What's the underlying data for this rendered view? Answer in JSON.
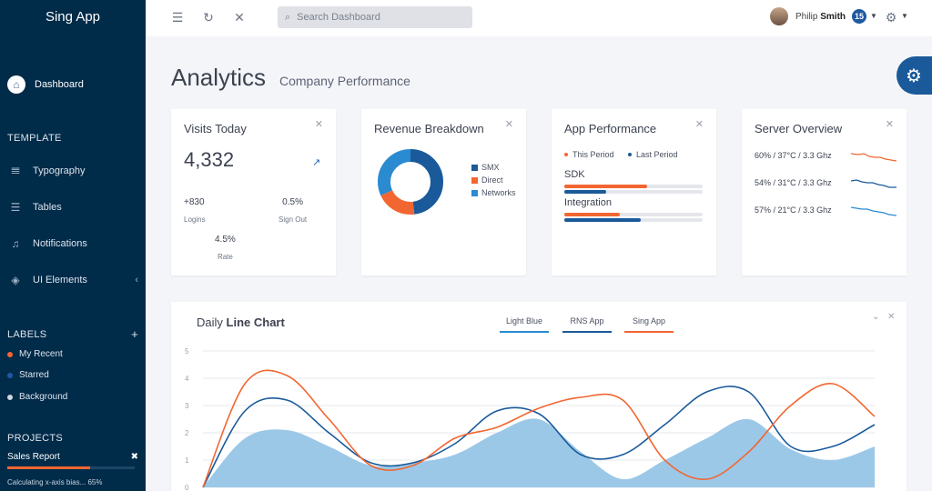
{
  "app": {
    "name": "Sing App"
  },
  "sidebar": {
    "dashboard": "Dashboard",
    "template_title": "TEMPLATE",
    "items": [
      {
        "label": "Typography",
        "icon": "typography-icon"
      },
      {
        "label": "Tables",
        "icon": "tables-icon"
      },
      {
        "label": "Notifications",
        "icon": "bell-icon"
      },
      {
        "label": "UI Elements",
        "icon": "layers-icon"
      }
    ],
    "labels_title": "LABELS",
    "labels": [
      {
        "label": "My Recent",
        "color": "#f26631"
      },
      {
        "label": "Starred",
        "color": "#1e5aa0"
      },
      {
        "label": "Background",
        "color": "#cfd6df"
      }
    ],
    "projects_title": "PROJECTS",
    "project": {
      "name": "Sales Report",
      "note": "Calculating x-axis bias... 65%",
      "progress": 0.65
    }
  },
  "header": {
    "search_placeholder": "Search Dashboard",
    "user_first": "Philip",
    "user_last": "Smith",
    "notifications": "15"
  },
  "page": {
    "title": "Analytics",
    "subtitle": "Company Performance"
  },
  "visits": {
    "title": "Visits Today",
    "value": "4,332",
    "stats": [
      {
        "value": "+830",
        "label": "Logins"
      },
      {
        "value": "0.5%",
        "label": "Sign Out"
      },
      {
        "value": "4.5%",
        "label": "Rate"
      }
    ]
  },
  "revenue": {
    "title": "Revenue Breakdown",
    "segments": [
      {
        "label": "SMX",
        "color": "#1a5a9a",
        "value": 0.48
      },
      {
        "label": "Direct",
        "color": "#f26631",
        "value": 0.2
      },
      {
        "label": "Networks",
        "color": "#2a8bd1",
        "value": 0.32
      }
    ]
  },
  "app_performance": {
    "title": "App Performance",
    "legend": [
      {
        "label": "This Period",
        "color": "#f26631"
      },
      {
        "label": "Last Period",
        "color": "#1a5a9a"
      }
    ],
    "metrics": [
      {
        "label": "SDK",
        "this_period": 0.6,
        "last_period": 0.3
      },
      {
        "label": "Integration",
        "this_period": 0.4,
        "last_period": 0.55
      }
    ]
  },
  "server": {
    "title": "Server Overview",
    "rows": [
      {
        "label": "60% / 37°C / 3.3 Ghz",
        "color": "#f26631"
      },
      {
        "label": "54% / 31°C / 3.3 Ghz",
        "color": "#1a5a9a"
      },
      {
        "label": "57% / 21°C / 3.3 Ghz",
        "color": "#2a8bd1"
      }
    ]
  },
  "line_chart": {
    "title_prefix": "Daily",
    "title_bold": "Line Chart",
    "legend": [
      {
        "label": "Light Blue",
        "color": "#2a8bd1"
      },
      {
        "label": "RNS App",
        "color": "#1a5a9a"
      },
      {
        "label": "Sing App",
        "color": "#f26631"
      }
    ]
  },
  "chart_data": {
    "type": "line",
    "title": "Daily Line Chart",
    "yticks": [
      0,
      1,
      2,
      3,
      4,
      5
    ],
    "ylim": [
      0,
      5
    ],
    "xlim": [
      0,
      16
    ],
    "series": [
      {
        "name": "Light Blue",
        "type": "area",
        "color": "#9cc8e8",
        "x": [
          0,
          1,
          2,
          3,
          4,
          5,
          6,
          7,
          8,
          9,
          10,
          11,
          12,
          13,
          14,
          15,
          16
        ],
        "y": [
          0,
          1.8,
          2.1,
          1.5,
          0.8,
          0.9,
          1.2,
          2.0,
          2.5,
          1.3,
          0.3,
          1.0,
          1.8,
          2.5,
          1.4,
          1.0,
          1.5
        ]
      },
      {
        "name": "RNS App",
        "color": "#1a5a9a",
        "x": [
          0,
          1,
          2,
          3,
          4,
          5,
          6,
          7,
          8,
          9,
          10,
          11,
          12,
          13,
          14,
          15,
          16
        ],
        "y": [
          0,
          2.8,
          3.2,
          2.0,
          0.9,
          0.9,
          1.6,
          2.8,
          2.7,
          1.2,
          1.2,
          2.3,
          3.5,
          3.5,
          1.5,
          1.5,
          2.3
        ]
      },
      {
        "name": "Sing App",
        "color": "#f26631",
        "x": [
          0,
          1,
          2,
          3,
          4,
          5,
          6,
          7,
          8,
          9,
          10,
          11,
          12,
          13,
          14,
          15,
          16
        ],
        "y": [
          0,
          3.8,
          4.1,
          2.5,
          0.8,
          0.8,
          1.8,
          2.2,
          2.9,
          3.3,
          3.2,
          1.0,
          0.3,
          1.3,
          3.0,
          3.8,
          2.6
        ]
      }
    ]
  }
}
